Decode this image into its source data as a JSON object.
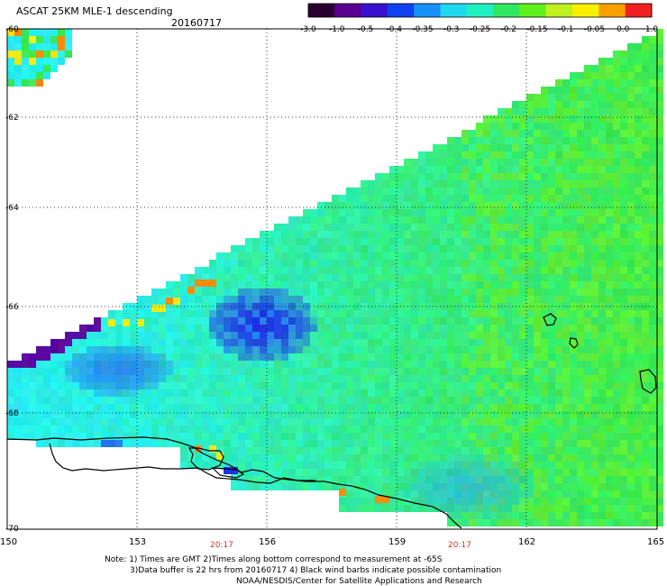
{
  "title": "ASCAT 25KM MLE-1 descending",
  "date": "20160717",
  "colorbar": {
    "tick_labels": [
      "-3.0",
      "-1.0",
      "-0.5",
      "-0.4",
      "-0.35",
      "-0.3",
      "-0.25",
      "-0.2",
      "-0.15",
      "-0.1",
      "-0.05",
      "0.0",
      "1.0"
    ],
    "colors": [
      "#2a0030",
      "#5a0090",
      "#3a10d0",
      "#1040f0",
      "#1890f8",
      "#20d8f0",
      "#20f0c0",
      "#30e860",
      "#60f020",
      "#c0f020",
      "#f8f000",
      "#f8a000",
      "#f02020"
    ]
  },
  "axes": {
    "lat_labels": [
      "-60",
      "-62",
      "-64",
      "-66",
      "-68",
      "-70"
    ],
    "lon_labels": [
      "150",
      "153",
      "156",
      "159",
      "162",
      "165"
    ],
    "times": [
      "20:17",
      "20:17"
    ]
  },
  "notes": {
    "line1": "Note: 1) Times are GMT 2)Times along bottom correspond to measurement at -65S",
    "line2": "3)Data buffer is 22 hrs from 20160717 4) Black wind barbs indicate possible contamination",
    "line3": "NOAA/NESDIS/Center for Satellite Applications and Research"
  },
  "style": {
    "grid": "dotted",
    "time_color": "#c0392b",
    "coast_color": "#000000"
  }
}
